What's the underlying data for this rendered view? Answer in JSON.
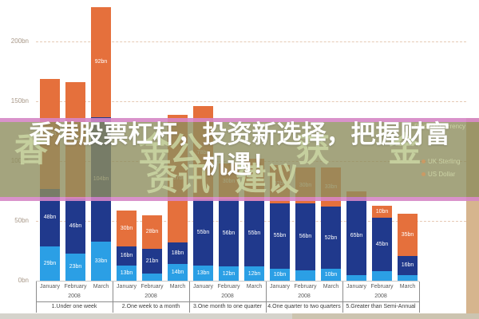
{
  "overlay": {
    "line1": "香港股票杠杆，投资新选择，把握财富",
    "line2": "机遇！",
    "full_title": "香港股票杠杆，投资新选择，把握财富机遇！"
  },
  "watermark_text": {
    "line1": [
      {
        "ch": "香",
        "x": 18
      },
      {
        "ch": "金",
        "x": 173
      },
      {
        "ch": "公",
        "x": 212
      },
      {
        "ch": "获",
        "x": 371
      },
      {
        "ch": "金",
        "x": 486
      }
    ],
    "line2": [
      {
        "ch": "资讯",
        "x": 183
      },
      {
        "ch": "建议",
        "x": 294
      }
    ]
  },
  "legend": {
    "title": "Pledged Currency",
    "items": [
      "UK Sterling",
      "US Dollar"
    ]
  },
  "colors": {
    "orange": "#E5703C",
    "dark_blue": "#20398C",
    "light_blue": "#2B9FE5",
    "overlay_olive": "rgba(141,141,94,0.8)",
    "overlay_pink": "rgba(213,134,197,0.9)",
    "watermark_green": "rgba(205,217,166,0.8)",
    "legend_text": "rgba(208,216,170,0.9)",
    "legend_bullet": "rgba(220,150,90,0.7)",
    "footer_left": "#d5d3cc",
    "footer_right": "#ccc4b0",
    "tan_column": "#d6b58e"
  },
  "chart_data": {
    "type": "bar",
    "stacked": true,
    "unit": "bn",
    "ylim": [
      0,
      230
    ],
    "yticks": [
      {
        "value": 0,
        "label": "0bn"
      },
      {
        "value": 50,
        "label": "50bn"
      },
      {
        "value": 100,
        "label": "100bn"
      },
      {
        "value": 150,
        "label": "150bn"
      },
      {
        "value": 200,
        "label": "200bn"
      }
    ],
    "grid": "dashed horizontal",
    "legend_position": "right, partially hidden by overlay banner",
    "series": [
      {
        "key": "bottom-segment",
        "color": "#2B9FE5"
      },
      {
        "key": "middle-segment",
        "color": "#20398C"
      },
      {
        "key": "top-segment",
        "color": "#E5703C"
      }
    ],
    "months": [
      "January",
      "February",
      "March"
    ],
    "year": "2008",
    "groups": [
      {
        "label": "1.Under one week",
        "bars": [
          [
            29,
            48,
            92
          ],
          [
            23,
            46,
            97
          ],
          [
            33,
            104,
            92
          ]
        ]
      },
      {
        "label": "2.One week to a month",
        "bars": [
          [
            13,
            16,
            30
          ],
          [
            6,
            21,
            28
          ],
          [
            14,
            18,
            107
          ]
        ]
      },
      {
        "label": "3.One month to one quarter",
        "bars": [
          [
            13,
            55,
            78
          ],
          [
            12,
            56,
            30
          ],
          [
            12,
            55,
            35
          ]
        ]
      },
      {
        "label": "4.One quarter to two quarters",
        "bars": [
          [
            10,
            55,
            32
          ],
          [
            9,
            56,
            30
          ],
          [
            10,
            52,
            33
          ]
        ]
      },
      {
        "label": "5.Greater than Semi-Annual",
        "bars": [
          [
            5,
            65,
            5
          ],
          [
            8,
            45,
            10
          ],
          [
            5,
            16,
            35
          ]
        ]
      }
    ]
  }
}
